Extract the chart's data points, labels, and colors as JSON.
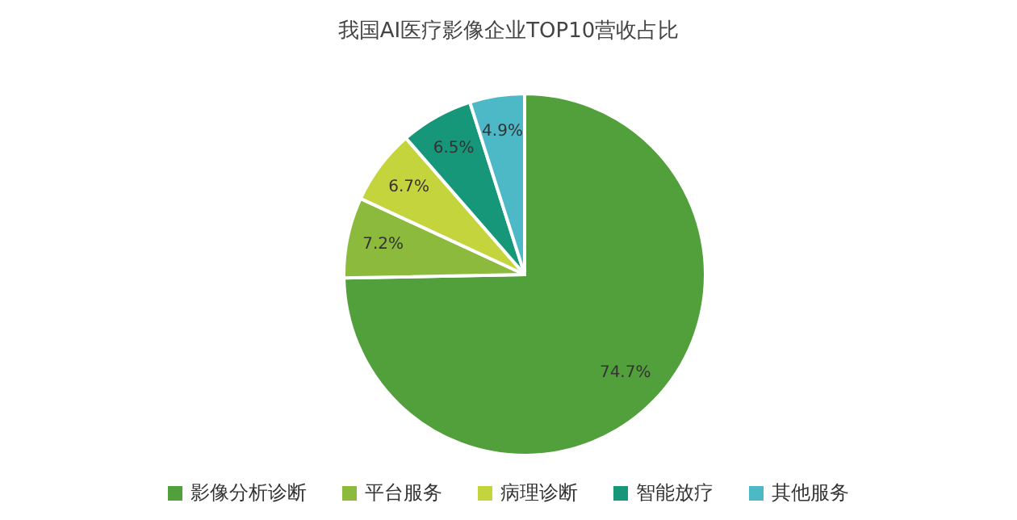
{
  "chart_data": {
    "type": "pie",
    "title": "我国AI医疗影像企业TOP10营收占比",
    "categories": [
      "影像分析诊断",
      "平台服务",
      "病理诊断",
      "智能放疗",
      "其他服务"
    ],
    "values": [
      74.7,
      7.2,
      6.7,
      6.5,
      4.9
    ],
    "colors": [
      "#51a03b",
      "#8cba3c",
      "#c4d43c",
      "#17977a",
      "#4db8c6"
    ],
    "value_labels": [
      "74.7%",
      "7.2%",
      "6.7%",
      "6.5%",
      "4.9%"
    ],
    "legend": "bottom"
  }
}
